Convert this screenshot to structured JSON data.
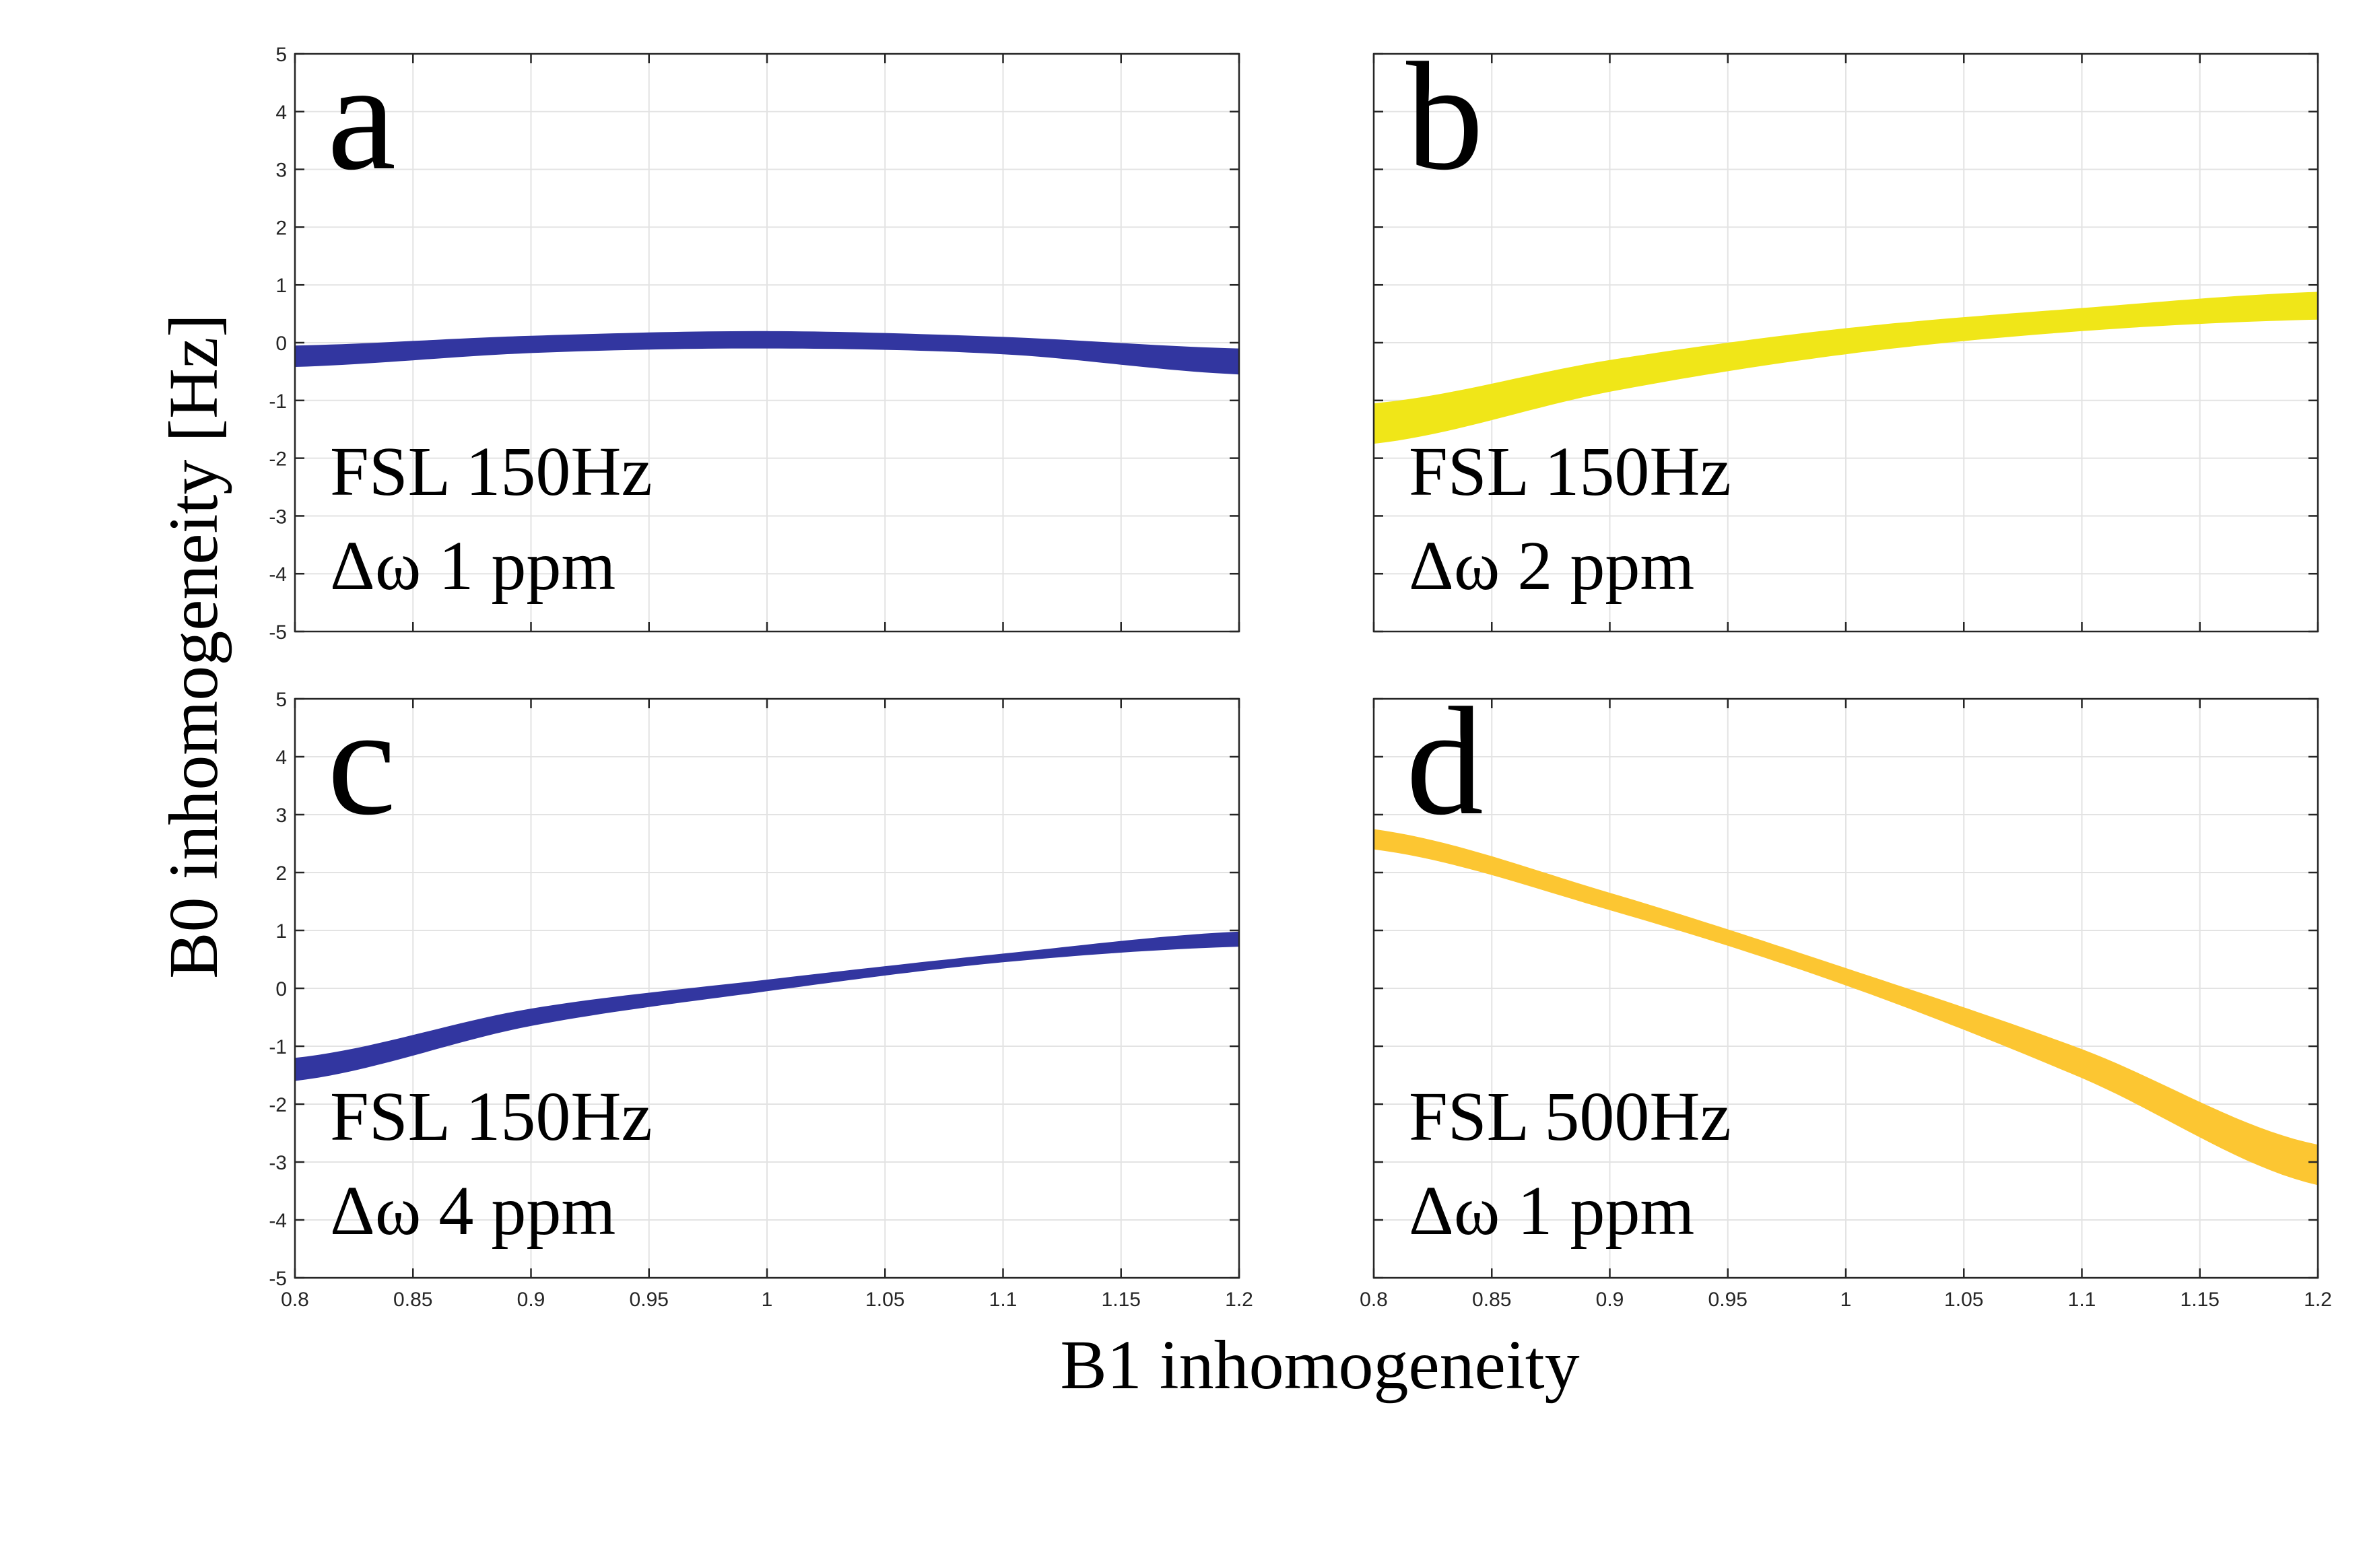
{
  "figure": {
    "ylabel": "B0 inhomogeneity [Hz]",
    "xlabel": "B1 inhomogeneity"
  },
  "chart_data": [
    {
      "type": "area",
      "panel": "a",
      "annotation": [
        "FSL 150Hz",
        "Δω 1 ppm"
      ],
      "xlim": [
        0.8,
        1.2
      ],
      "ylim": [
        -5,
        5
      ],
      "xticks": [
        0.8,
        0.85,
        0.9,
        0.95,
        1,
        1.05,
        1.1,
        1.15,
        1.2
      ],
      "yticks": [
        -5,
        -4,
        -3,
        -2,
        -1,
        0,
        1,
        2,
        3,
        4,
        5
      ],
      "show_xticklabels": false,
      "show_yticklabels": true,
      "grid": true,
      "color": "#3236a0",
      "series": [
        {
          "name": "lower",
          "x": [
            0.8,
            0.9,
            1.0,
            1.1,
            1.2
          ],
          "y": [
            -0.42,
            -0.18,
            -0.1,
            -0.2,
            -0.55
          ]
        },
        {
          "name": "upper",
          "x": [
            0.8,
            0.9,
            1.0,
            1.1,
            1.2
          ],
          "y": [
            -0.05,
            0.12,
            0.2,
            0.1,
            -0.1
          ]
        }
      ]
    },
    {
      "type": "area",
      "panel": "b",
      "annotation": [
        "FSL 150Hz",
        "Δω 2 ppm"
      ],
      "xlim": [
        0.8,
        1.2
      ],
      "ylim": [
        -5,
        5
      ],
      "xticks": [
        0.8,
        0.85,
        0.9,
        0.95,
        1,
        1.05,
        1.1,
        1.15,
        1.2
      ],
      "yticks": [
        -5,
        -4,
        -3,
        -2,
        -1,
        0,
        1,
        2,
        3,
        4,
        5
      ],
      "show_xticklabels": false,
      "show_yticklabels": false,
      "grid": true,
      "color": "#f0e618",
      "series": [
        {
          "name": "lower",
          "x": [
            0.8,
            0.9,
            1.0,
            1.1,
            1.2
          ],
          "y": [
            -1.75,
            -0.85,
            -0.2,
            0.2,
            0.4
          ]
        },
        {
          "name": "upper",
          "x": [
            0.8,
            0.9,
            1.0,
            1.1,
            1.2
          ],
          "y": [
            -1.05,
            -0.3,
            0.25,
            0.6,
            0.88
          ]
        }
      ]
    },
    {
      "type": "area",
      "panel": "c",
      "annotation": [
        "FSL 150Hz",
        "Δω 4 ppm"
      ],
      "xlim": [
        0.8,
        1.2
      ],
      "ylim": [
        -5,
        5
      ],
      "xticks": [
        0.8,
        0.85,
        0.9,
        0.95,
        1,
        1.05,
        1.1,
        1.15,
        1.2
      ],
      "yticks": [
        -5,
        -4,
        -3,
        -2,
        -1,
        0,
        1,
        2,
        3,
        4,
        5
      ],
      "show_xticklabels": true,
      "show_yticklabels": true,
      "grid": true,
      "color": "#3236a0",
      "series": [
        {
          "name": "lower",
          "x": [
            0.8,
            0.9,
            1.0,
            1.1,
            1.2
          ],
          "y": [
            -1.6,
            -0.65,
            -0.05,
            0.45,
            0.72
          ]
        },
        {
          "name": "upper",
          "x": [
            0.8,
            0.9,
            1.0,
            1.1,
            1.2
          ],
          "y": [
            -1.2,
            -0.35,
            0.15,
            0.6,
            0.98
          ]
        }
      ]
    },
    {
      "type": "area",
      "panel": "d",
      "annotation": [
        "FSL 500Hz",
        "Δω 1 ppm"
      ],
      "xlim": [
        0.8,
        1.2
      ],
      "ylim": [
        -5,
        5
      ],
      "xticks": [
        0.8,
        0.85,
        0.9,
        0.95,
        1,
        1.05,
        1.1,
        1.15,
        1.2
      ],
      "yticks": [
        -5,
        -4,
        -3,
        -2,
        -1,
        0,
        1,
        2,
        3,
        4,
        5
      ],
      "show_xticklabels": true,
      "show_yticklabels": false,
      "grid": true,
      "color": "#fcc632",
      "series": [
        {
          "name": "lower",
          "x": [
            0.8,
            0.9,
            1.0,
            1.1,
            1.2
          ],
          "y": [
            2.4,
            1.35,
            0.05,
            -1.55,
            -3.4
          ]
        },
        {
          "name": "upper",
          "x": [
            0.8,
            0.9,
            1.0,
            1.1,
            1.2
          ],
          "y": [
            2.75,
            1.65,
            0.35,
            -1.05,
            -2.7
          ]
        }
      ]
    }
  ]
}
